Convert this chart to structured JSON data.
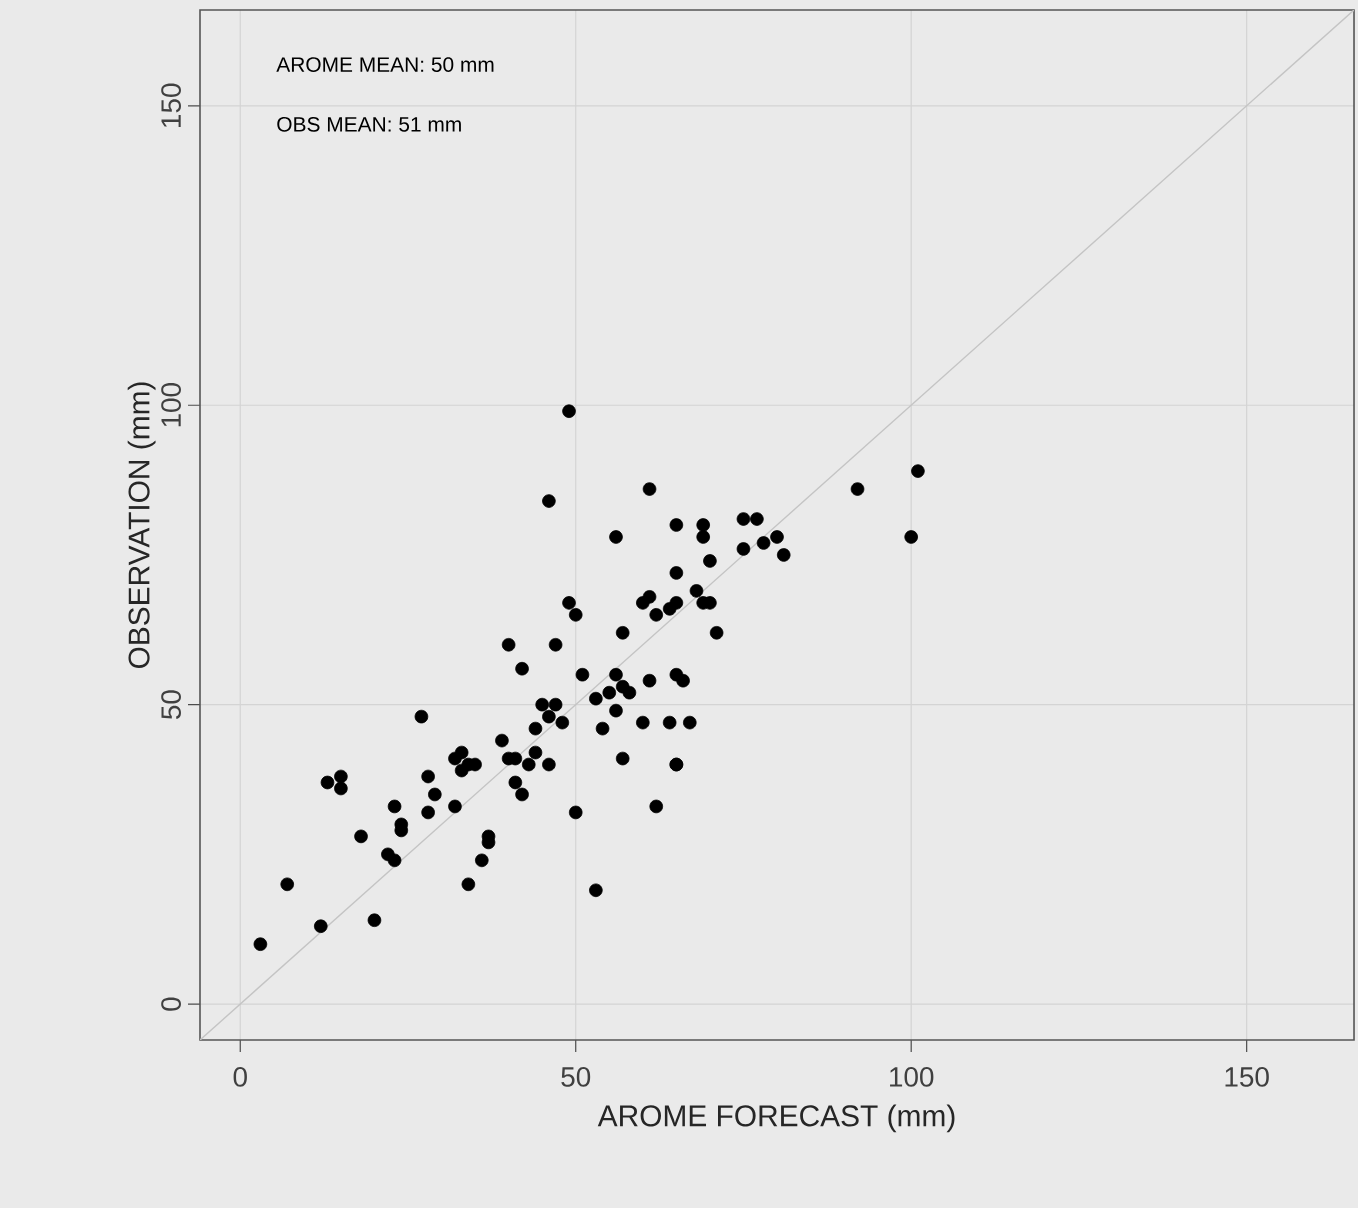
{
  "chart_data": {
    "type": "scatter",
    "xlabel": "AROME FORECAST (mm)",
    "ylabel": "OBSERVATION (mm)",
    "annotations": [
      "AROME MEAN: 50 mm",
      "OBS MEAN: 51 mm"
    ],
    "xlim": [
      -6,
      166
    ],
    "ylim": [
      -6,
      166
    ],
    "xticks": [
      0,
      50,
      100,
      150
    ],
    "yticks": [
      0,
      50,
      100,
      150
    ],
    "grid": true,
    "marker": "circle",
    "series": [
      {
        "type": "line",
        "color": "#c4c4c4",
        "marker": "none",
        "x": [
          -6,
          166
        ],
        "values": [
          -6,
          166
        ]
      },
      {
        "color": "#000000",
        "x": [
          3,
          7,
          12,
          13,
          15,
          15,
          18,
          20,
          22,
          23,
          23,
          24,
          24,
          28,
          27,
          28,
          29,
          32,
          32,
          33,
          34,
          35,
          33,
          34,
          36,
          37,
          37,
          39,
          40,
          41,
          43,
          41,
          42,
          44,
          46,
          44,
          46,
          45,
          47,
          48,
          42,
          40,
          47,
          49,
          50,
          46,
          49,
          51,
          50,
          53,
          53,
          55,
          57,
          58,
          56,
          54,
          56,
          60,
          61,
          64,
          67,
          57,
          65,
          65,
          62,
          65,
          66,
          57,
          62,
          64,
          65,
          60,
          61,
          68,
          69,
          70,
          71,
          65,
          70,
          56,
          61,
          65,
          69,
          69,
          75,
          77,
          75,
          78,
          80,
          81,
          92,
          101,
          100
        ],
        "values": [
          10,
          20,
          13,
          37,
          38,
          36,
          28,
          14,
          25,
          24,
          33,
          30,
          29,
          32,
          48,
          38,
          35,
          33,
          41,
          42,
          40,
          40,
          39,
          20,
          24,
          27,
          28,
          44,
          41,
          41,
          40,
          37,
          35,
          42,
          40,
          46,
          48,
          50,
          50,
          47,
          56,
          60,
          60,
          67,
          65,
          84,
          99,
          55,
          32,
          19,
          51,
          52,
          53,
          52,
          49,
          46,
          55,
          47,
          54,
          47,
          47,
          41,
          40,
          40,
          33,
          55,
          54,
          62,
          65,
          66,
          67,
          67,
          68,
          69,
          67,
          67,
          62,
          72,
          74,
          78,
          86,
          80,
          80,
          78,
          81,
          81,
          76,
          77,
          78,
          75,
          86,
          89,
          78
        ]
      }
    ]
  }
}
